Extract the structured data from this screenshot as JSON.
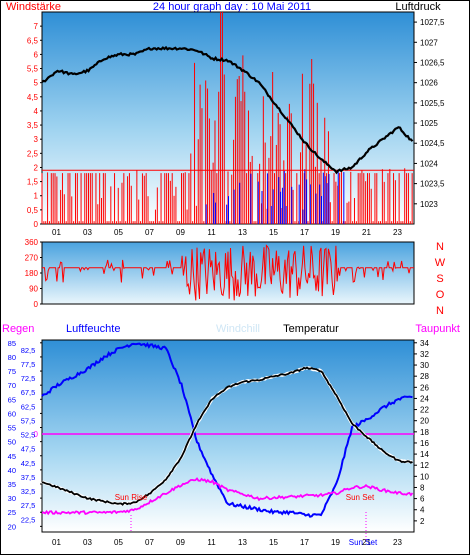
{
  "header": {
    "left_title": "Windstärke",
    "center_title": "24 hour graph day : 10 Mai 2011",
    "right_title": "Luftdruck"
  },
  "chart_data": [
    {
      "type": "line",
      "panel": "wind_pressure",
      "x_labels": [
        "01",
        "03",
        "05",
        "07",
        "09",
        "11",
        "13",
        "15",
        "17",
        "19",
        "21",
        "23"
      ],
      "left_axis": {
        "label": "Windstärke",
        "ylim": [
          0,
          7.5
        ],
        "ticks": [
          "7",
          "6,5",
          "6",
          "5,5",
          "5",
          "4,5",
          "4",
          "3,5",
          "3",
          "2,5",
          "2",
          "1,5",
          "1",
          "0,5",
          "0"
        ]
      },
      "right_axis": {
        "label": "Luftdruck",
        "ylim": [
          1022.5,
          1027.75
        ],
        "ticks": [
          "1027,5",
          "1027",
          "1026,5",
          "1026",
          "1025,5",
          "1025",
          "1024,5",
          "1024",
          "1023,5",
          "1023"
        ]
      },
      "series": [
        {
          "name": "Luftdruck",
          "color": "#000000",
          "x": [
            0,
            1,
            2,
            3,
            4,
            5,
            6,
            7,
            8,
            9,
            10,
            11,
            12,
            13,
            14,
            15,
            16,
            17,
            18,
            19,
            20,
            21,
            22,
            23,
            24
          ],
          "values": [
            1026.0,
            1026.3,
            1026.2,
            1026.3,
            1026.6,
            1026.7,
            1026.7,
            1026.85,
            1026.85,
            1026.85,
            1026.8,
            1026.6,
            1026.55,
            1026.3,
            1026.0,
            1025.5,
            1025.0,
            1024.5,
            1024.1,
            1023.8,
            1023.9,
            1024.3,
            1024.6,
            1024.9,
            1024.5
          ]
        },
        {
          "name": "Windstärke",
          "color": "#ff0000",
          "style": "bars",
          "range_hours": [
            0,
            24
          ],
          "baseline_max": 2,
          "peak_max": 7.5,
          "peak_hours": [
            9.5,
            18.5
          ]
        },
        {
          "name": "Windstärke (calm)",
          "color": "#0000ff",
          "style": "bars",
          "range_hours": [
            10.5,
            19.5
          ],
          "max": 2
        }
      ]
    },
    {
      "type": "line",
      "panel": "wind_direction",
      "left_axis": {
        "ylim": [
          0,
          360
        ],
        "ticks": [
          "360",
          "270",
          "180",
          "90",
          "0"
        ]
      },
      "right_axis": {
        "ticks": [
          "N",
          "W",
          "S",
          "O",
          "N"
        ]
      },
      "series": [
        {
          "name": "Windrichtung",
          "color": "#ff0000",
          "baseline": 210,
          "spread_hours": [
            9,
            19
          ]
        }
      ]
    },
    {
      "type": "line",
      "panel": "temperature_humidity",
      "legend": [
        "Regen",
        "Luftfeuchte",
        "Windchill",
        "Temperatur",
        "Taupunkt"
      ],
      "x_labels": [
        "01",
        "03",
        "05",
        "07",
        "09",
        "11",
        "13",
        "15",
        "17",
        "19",
        "21",
        "23"
      ],
      "markers": [
        "Sun Rise",
        "Sun Set"
      ],
      "rain_marker": "0",
      "left_axis": {
        "ylim": [
          18,
          86
        ],
        "ticks": [
          "85",
          "80",
          "75",
          "70",
          "65",
          "60",
          "55",
          "50",
          "45",
          "40",
          "35",
          "30",
          "25",
          "20"
        ]
      },
      "left_axis_extra": [
        "82,5",
        "77,5",
        "72,5",
        "67,5",
        "62,5",
        "57,5",
        "52,5",
        "47,5",
        "42,5",
        "37,5",
        "32,5",
        "27,5",
        "22,5"
      ],
      "right_axis": {
        "ylim": [
          0,
          34.5
        ],
        "ticks": [
          "34",
          "32",
          "30",
          "28",
          "26",
          "24",
          "22",
          "20",
          "18",
          "16",
          "14",
          "12",
          "10",
          "8",
          "6",
          "4",
          "2"
        ]
      },
      "series": [
        {
          "name": "Luftfeuchte",
          "color": "#0000ff",
          "axis": "left",
          "x": [
            0,
            1,
            2,
            3,
            4,
            5,
            6,
            7,
            8,
            9,
            10,
            11,
            12,
            13,
            14,
            15,
            16,
            17,
            18,
            19,
            20,
            21,
            22,
            23,
            24
          ],
          "values": [
            66,
            70,
            73,
            76,
            80,
            83,
            85,
            84,
            83,
            70,
            50,
            38,
            28,
            27,
            26,
            25,
            25,
            24,
            24,
            35,
            55,
            58,
            62,
            65,
            66
          ]
        },
        {
          "name": "Temperatur",
          "color": "#000000",
          "axis": "right",
          "x": [
            0,
            1,
            2,
            3,
            4,
            5,
            6,
            7,
            8,
            9,
            10,
            11,
            12,
            13,
            14,
            15,
            16,
            17,
            18,
            19,
            20,
            21,
            22,
            23,
            24
          ],
          "values": [
            9.0,
            8.0,
            7.0,
            6.0,
            5.5,
            5.0,
            5.3,
            7.0,
            9.5,
            13.5,
            19.5,
            24.0,
            26.0,
            27.0,
            27.3,
            28.0,
            28.5,
            29.5,
            29.0,
            24.5,
            19.5,
            17.0,
            14.5,
            12.8,
            12.5
          ]
        },
        {
          "name": "Windchill",
          "color": "#ffffff",
          "axis": "right",
          "x": [
            0,
            1,
            2,
            3,
            4,
            5,
            6,
            7,
            8,
            9,
            10,
            11,
            12,
            13,
            14,
            15,
            16,
            17,
            18,
            19,
            20,
            21,
            22,
            23,
            24
          ],
          "values": [
            9.0,
            8.0,
            7.0,
            6.0,
            5.5,
            5.0,
            5.3,
            7.0,
            9.5,
            13.5,
            19.5,
            24.0,
            26.0,
            27.0,
            27.3,
            28.0,
            28.5,
            29.5,
            29.0,
            24.5,
            19.5,
            17.0,
            14.5,
            12.8,
            12.5
          ]
        },
        {
          "name": "Taupunkt",
          "color": "#ff00ff",
          "axis": "right",
          "x": [
            0,
            1,
            2,
            3,
            4,
            5,
            6,
            7,
            8,
            9,
            10,
            11,
            12,
            13,
            14,
            15,
            16,
            17,
            18,
            19,
            20,
            21,
            22,
            23,
            24
          ],
          "values": [
            3.5,
            3.5,
            3.5,
            3.5,
            3.5,
            3.6,
            4.0,
            5.5,
            7.0,
            8.5,
            9.5,
            9.0,
            7.5,
            6.8,
            6.0,
            6.2,
            6.3,
            6.5,
            6.6,
            7.0,
            8.0,
            8.2,
            7.5,
            7.0,
            6.8
          ]
        }
      ]
    }
  ],
  "colors": {
    "gradient_top": "#6fc3ea",
    "gradient_bottom": "#ffffff",
    "frame": "#000000",
    "accent_red": "#ff0000",
    "accent_blue": "#0000ff",
    "accent_magenta": "#ff00ff"
  }
}
